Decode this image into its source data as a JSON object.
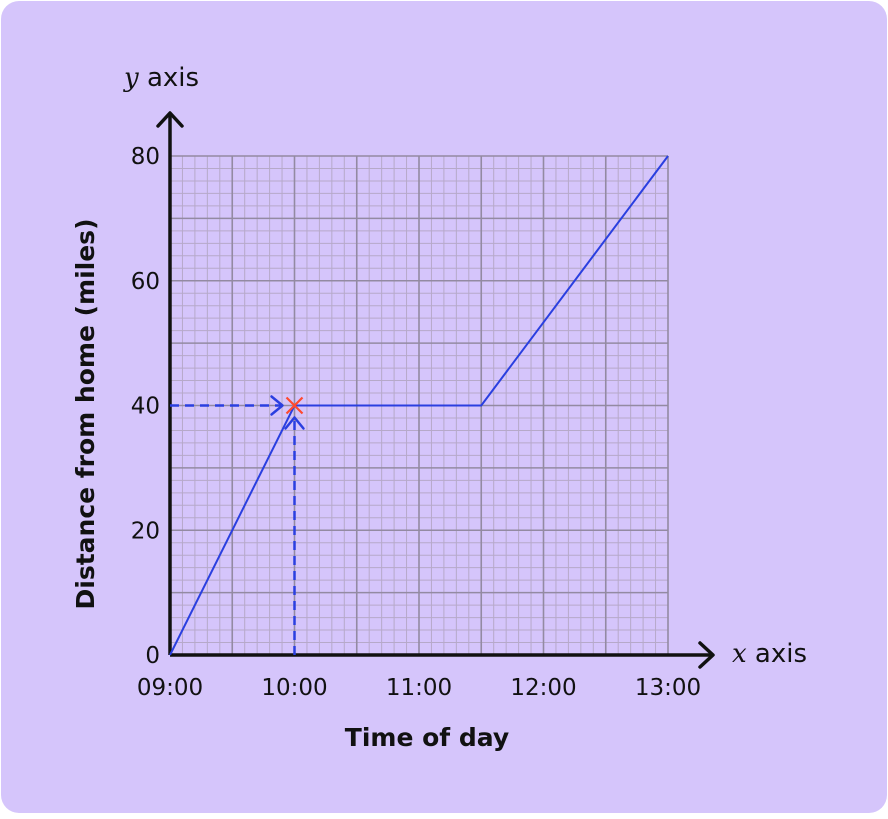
{
  "colors": {
    "background": "#d5c5fb",
    "grid_minor": "#b6a9c9",
    "grid_major": "#938aa2",
    "axis": "#111111",
    "line": "#2a3fe0",
    "marker": "#ff4a2e"
  },
  "chart_data": {
    "type": "line",
    "title": "",
    "xlabel": "Time of day",
    "ylabel": "Distance from home (miles)",
    "x_axis_name": {
      "var": "x",
      "word": " axis"
    },
    "y_axis_name": {
      "var": "y",
      "word": " axis"
    },
    "x_ticks": [
      "09:00",
      "10:00",
      "11:00",
      "12:00",
      "13:00"
    ],
    "y_ticks": [
      "0",
      "20",
      "40",
      "60",
      "80"
    ],
    "xlim": [
      "09:00",
      "13:00"
    ],
    "ylim": [
      0,
      80
    ],
    "grid": true,
    "series": [
      {
        "points": [
          {
            "x": "09:00",
            "y": 0
          },
          {
            "x": "10:00",
            "y": 40
          },
          {
            "x": "11:30",
            "y": 40
          },
          {
            "x": "13:00",
            "y": 80
          }
        ]
      }
    ],
    "annotations": [
      {
        "type": "cross-marker",
        "x": "10:00",
        "y": 40
      },
      {
        "type": "dashed-arrow",
        "from": {
          "x": "09:00",
          "y": 40
        },
        "to": {
          "x": "10:00",
          "y": 40
        }
      },
      {
        "type": "dashed-arrow",
        "from": {
          "x": "10:00",
          "y": 0
        },
        "to": {
          "x": "10:00",
          "y": 40
        }
      }
    ]
  }
}
